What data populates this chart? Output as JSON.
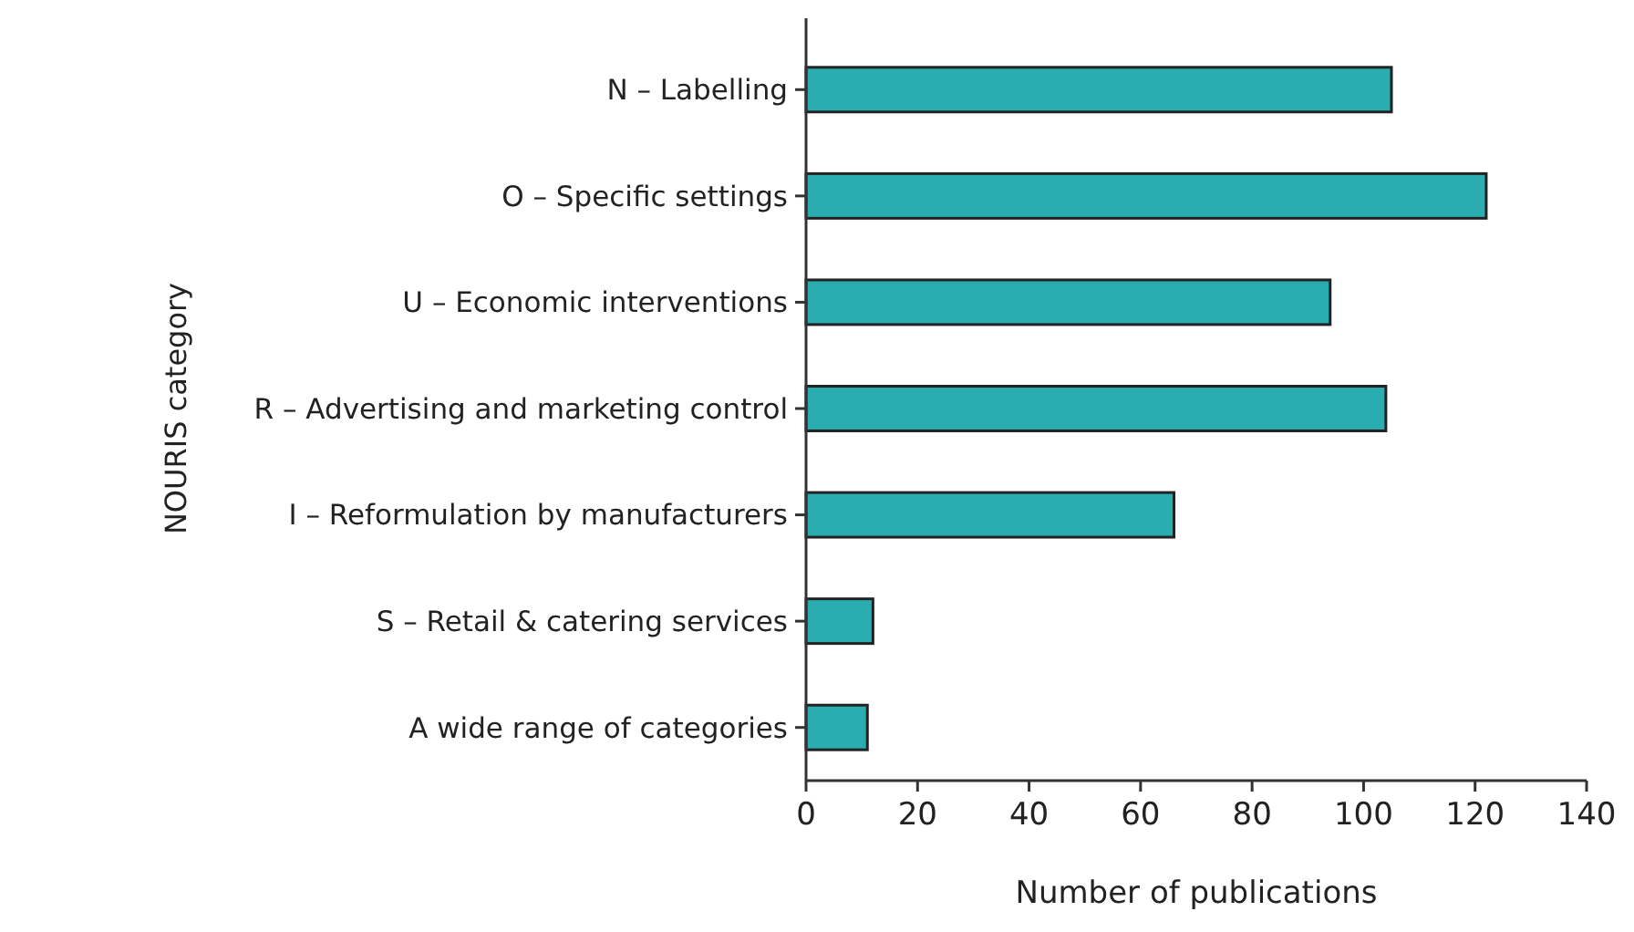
{
  "chart_data": {
    "type": "bar",
    "orientation": "horizontal",
    "xlabel": "Number of publications",
    "ylabel": "NOURIS category",
    "categories": [
      "N – Labelling",
      "O – Specific settings",
      "U – Economic interventions",
      "R – Advertising and marketing control",
      "I – Reformulation by manufacturers",
      "S – Retail & catering services",
      "A wide range of categories"
    ],
    "values": [
      105,
      122,
      94,
      104,
      66,
      12,
      11
    ],
    "color": "#29adb0",
    "xlim": [
      0,
      140
    ],
    "xticks": [
      0,
      20,
      40,
      60,
      80,
      100,
      120,
      140
    ],
    "grid": false
  }
}
